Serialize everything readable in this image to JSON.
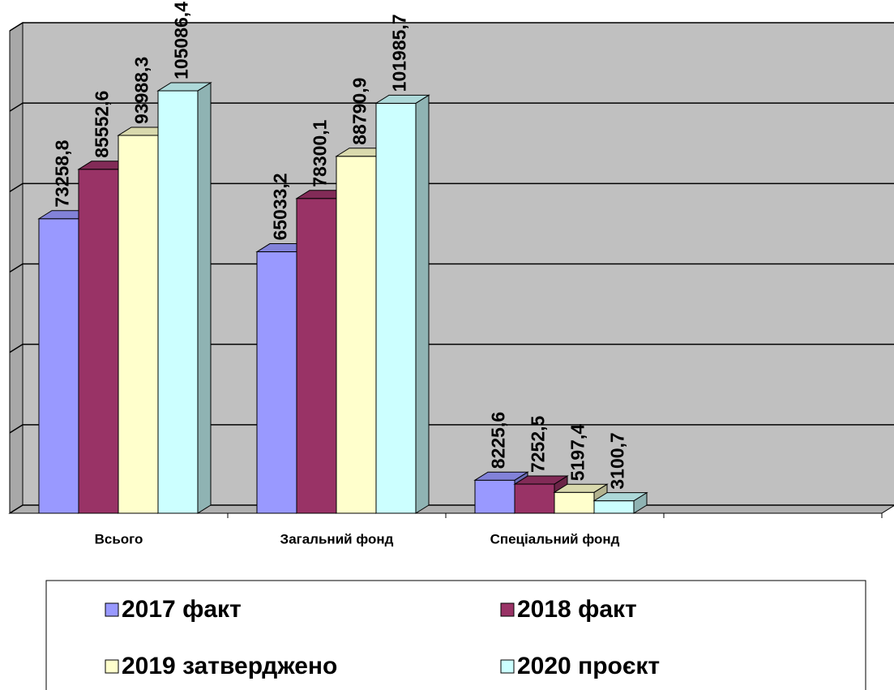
{
  "chart_data": {
    "type": "bar3d",
    "categories": [
      "Всього",
      "Загальний фонд",
      "Спеціальний фонд",
      null
    ],
    "series": [
      {
        "name": "2017 факт",
        "color": "#9999ff",
        "values": [
          73258.8,
          65033.2,
          8225.6,
          null
        ],
        "value_labels": [
          "73258,8",
          "65033,2",
          "8225,6",
          null
        ]
      },
      {
        "name": "2018 факт",
        "color": "#993366",
        "values": [
          85552.6,
          78300.1,
          7252.5,
          null
        ],
        "value_labels": [
          "85552,6",
          "78300,1",
          "7252,5",
          null
        ]
      },
      {
        "name": "2019 затверджено",
        "color": "#ffffcc",
        "values": [
          93988.3,
          88790.9,
          5197.4,
          null
        ],
        "value_labels": [
          "93988,3",
          "88790,9",
          "5197,4",
          null
        ]
      },
      {
        "name": "2020 проєкт",
        "color": "#ccffff",
        "values": [
          105086.4,
          101985.7,
          3100.7,
          null
        ],
        "value_labels": [
          "105086,4",
          "101985,7",
          "3100,7",
          null
        ]
      }
    ],
    "ylim": [
      0,
      120000
    ],
    "yticks": [
      0,
      20000,
      40000,
      60000,
      80000,
      100000,
      120000
    ],
    "grid": true,
    "legend": "bottom"
  }
}
